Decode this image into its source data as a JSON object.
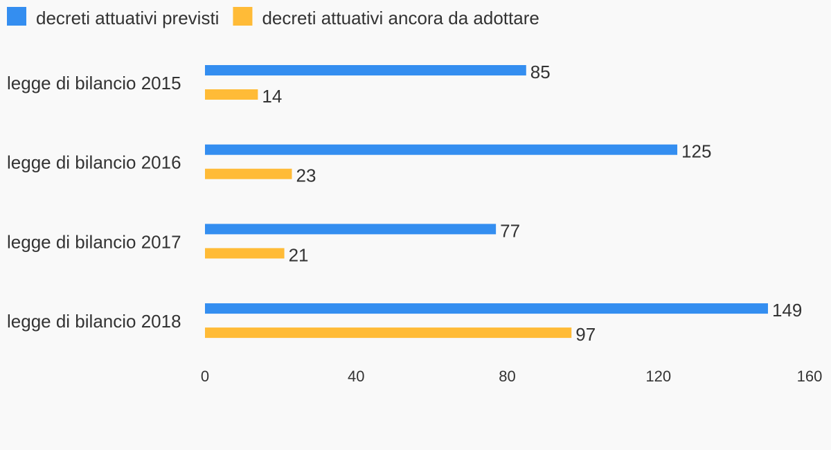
{
  "chart_data": {
    "type": "bar",
    "orientation": "horizontal",
    "categories": [
      "legge di bilancio 2015",
      "legge di bilancio 2016",
      "legge di bilancio 2017",
      "legge di bilancio 2018"
    ],
    "series": [
      {
        "name": "decreti attuativi previsti",
        "color": "#348ef0",
        "values": [
          85,
          125,
          77,
          149
        ]
      },
      {
        "name": "decreti attuativi ancora da adottare",
        "color": "#ffbb37",
        "values": [
          14,
          23,
          21,
          97
        ]
      }
    ],
    "xlim": [
      0,
      160
    ],
    "xticks": [
      "0",
      "40",
      "80",
      "120",
      "160"
    ],
    "legend_position": "top-left",
    "grid": false
  }
}
